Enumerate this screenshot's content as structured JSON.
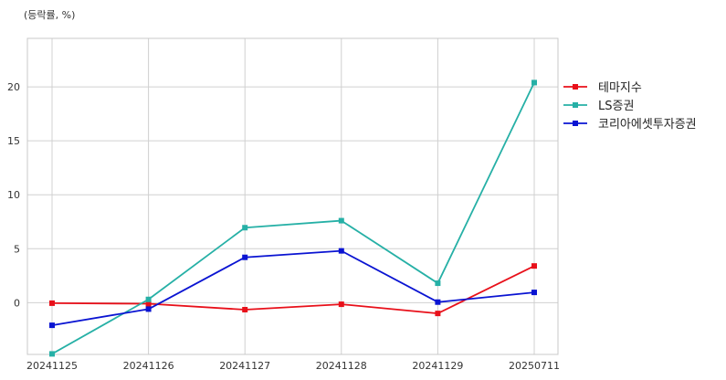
{
  "chart_data": {
    "type": "line",
    "ylabel": "(등락률, %)",
    "categories": [
      "20241125",
      "20241126",
      "20241127",
      "20241128",
      "20241129",
      "20250711"
    ],
    "ylim": [
      -4.8,
      24.5
    ],
    "yticks": [
      0,
      5,
      10,
      15,
      20
    ],
    "grid": true,
    "legend_position": "right",
    "series": [
      {
        "name": "테마지수",
        "color": "#e8101a",
        "values": [
          -0.05,
          -0.1,
          -0.65,
          -0.15,
          -1.0,
          3.4
        ]
      },
      {
        "name": "LS증권",
        "color": "#26b0a6",
        "values": [
          -4.75,
          0.3,
          6.95,
          7.6,
          1.8,
          20.4
        ]
      },
      {
        "name": "코리아에셋투자증권",
        "color": "#0a14d2",
        "values": [
          -2.1,
          -0.6,
          4.2,
          4.8,
          0.05,
          0.95
        ]
      }
    ]
  }
}
